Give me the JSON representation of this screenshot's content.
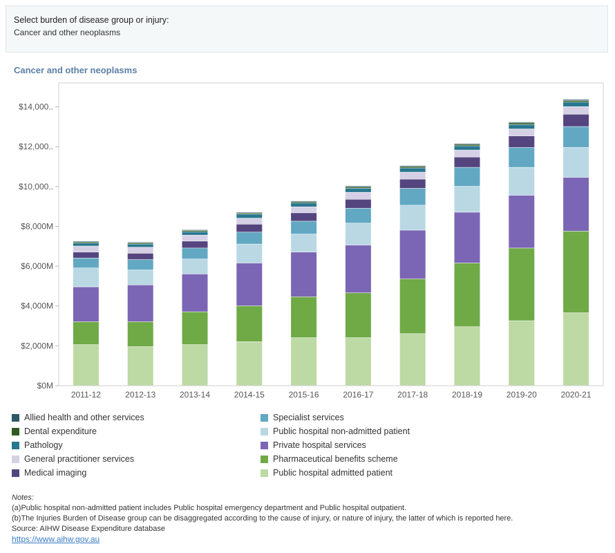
{
  "filter": {
    "label": "Select burden of disease group or injury:",
    "value": "Cancer and other neoplasms"
  },
  "title": "Cancer and other neoplasms",
  "chart_data": {
    "type": "bar",
    "stacked": true,
    "categories": [
      "2011-12",
      "2012-13",
      "2013-14",
      "2014-15",
      "2015-16",
      "2016-17",
      "2017-18",
      "2018-19",
      "2019-20",
      "2020-21"
    ],
    "y_ticks": [
      "$0M",
      "$2,000M",
      "$4,000M",
      "$6,000M",
      "$8,000M",
      "$10,000..",
      "$12,000..",
      "$14,000.."
    ],
    "ylim": [
      0,
      15200
    ],
    "series": [
      {
        "name": "Public hospital admitted patient",
        "color": "#bdd9a4",
        "values": [
          2050,
          1950,
          2050,
          2200,
          2400,
          2400,
          2600,
          2950,
          3250,
          3650
        ]
      },
      {
        "name": "Pharmaceutical benefits scheme",
        "color": "#6faa46",
        "values": [
          1150,
          1250,
          1650,
          1800,
          2050,
          2250,
          2750,
          3200,
          3650,
          4100
        ]
      },
      {
        "name": "Private hospital services",
        "color": "#7b66b5",
        "values": [
          1750,
          1850,
          1900,
          2150,
          2250,
          2400,
          2450,
          2550,
          2650,
          2700
        ]
      },
      {
        "name": "Public hospital non-admitted patient",
        "color": "#b9d8e3",
        "values": [
          950,
          750,
          750,
          950,
          900,
          1100,
          1250,
          1300,
          1400,
          1500
        ]
      },
      {
        "name": "Specialist services",
        "color": "#62a8c3",
        "values": [
          500,
          520,
          550,
          600,
          650,
          750,
          850,
          950,
          1000,
          1050
        ]
      },
      {
        "name": "Medical imaging",
        "color": "#55457f",
        "values": [
          300,
          320,
          350,
          400,
          420,
          450,
          460,
          520,
          580,
          620
        ]
      },
      {
        "name": "General practitioner services",
        "color": "#d5d0e5",
        "values": [
          300,
          300,
          300,
          300,
          300,
          350,
          350,
          350,
          350,
          380
        ]
      },
      {
        "name": "Pathology",
        "color": "#29778f",
        "values": [
          150,
          160,
          170,
          200,
          200,
          200,
          210,
          210,
          220,
          230
        ]
      },
      {
        "name": "Dental expenditure",
        "color": "#2f5a22",
        "values": [
          60,
          60,
          60,
          60,
          60,
          70,
          70,
          70,
          80,
          80
        ]
      },
      {
        "name": "Allied health and other services",
        "color": "#2d5866",
        "values": [
          40,
          40,
          40,
          40,
          40,
          50,
          50,
          50,
          50,
          50
        ]
      }
    ],
    "legend": {
      "left": [
        {
          "name": "Allied health and other services",
          "color": "#2d5866"
        },
        {
          "name": "Dental expenditure",
          "color": "#2f5a22"
        },
        {
          "name": "Pathology",
          "color": "#29778f"
        },
        {
          "name": "General practitioner services",
          "color": "#d5d0e5"
        },
        {
          "name": "Medical imaging",
          "color": "#55457f"
        }
      ],
      "right": [
        {
          "name": "Specialist services",
          "color": "#62a8c3"
        },
        {
          "name": "Public hospital non-admitted patient",
          "color": "#b9d8e3"
        },
        {
          "name": "Private hospital services",
          "color": "#7b66b5"
        },
        {
          "name": "Pharmaceutical benefits scheme",
          "color": "#6faa46"
        },
        {
          "name": "Public hospital admitted patient",
          "color": "#bdd9a4"
        }
      ]
    }
  },
  "notes": {
    "title": "Notes:",
    "lines": [
      "(a)Public hospital non-admitted patient includes Public hospital emergency department and Public hospital outpatient.",
      "(b)The Injuries Burden of Disease group can be disaggregated according to the cause of injury, or nature of injury, the latter of which is reported here."
    ],
    "source": "Source: AIHW Disease Expenditure database",
    "link": "https://www.aihw.gov.au"
  }
}
